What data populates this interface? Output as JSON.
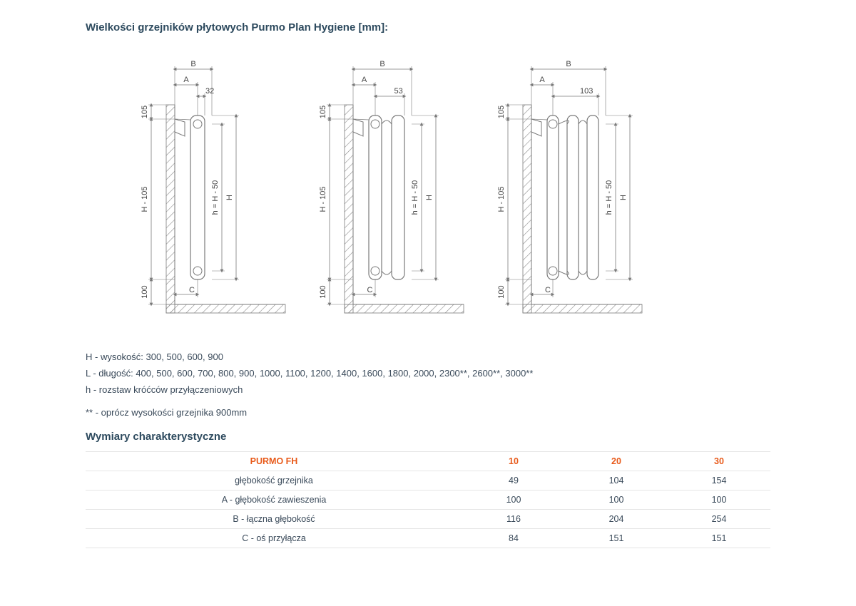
{
  "title": "Wielkości grzejników płytowych Purmo Plan Hygiene [mm]:",
  "diagrams": [
    {
      "top_val": "32",
      "panels": 1
    },
    {
      "top_val": "53",
      "panels": 2
    },
    {
      "top_val": "103",
      "panels": 3
    }
  ],
  "diagram_labels": {
    "A": "A",
    "B": "B",
    "C": "C",
    "h_eq": "h = H - 50",
    "H": "H",
    "top105": "105",
    "Hm105": "H - 105",
    "bot100": "100"
  },
  "colors": {
    "stroke": "#7a7a7a",
    "hatch": "#8a8a8a",
    "panel_fill": "#ffffff",
    "text": "#444444"
  },
  "desc": {
    "line1": "H - wysokość: 300, 500, 600, 900",
    "line2": "L - długość: 400, 500, 600, 700, 800, 900, 1000, 1100, 1200, 1400, 1600, 1800, 2000, 2300**, 2600**, 3000**",
    "line3": "h - rozstaw króćców przyłączeniowych",
    "note": "** - oprócz wysokości grzejnika 900mm"
  },
  "subtitle": "Wymiary charakterystyczne",
  "table": {
    "header": [
      "PURMO FH",
      "10",
      "20",
      "30"
    ],
    "rows": [
      [
        "głębokość grzejnika",
        "49",
        "104",
        "154"
      ],
      [
        "A - głębokość zawieszenia",
        "100",
        "100",
        "100"
      ],
      [
        "B - łączna głębokość",
        "116",
        "204",
        "254"
      ],
      [
        "C - oś przyłącza",
        "84",
        "151",
        "151"
      ]
    ]
  }
}
